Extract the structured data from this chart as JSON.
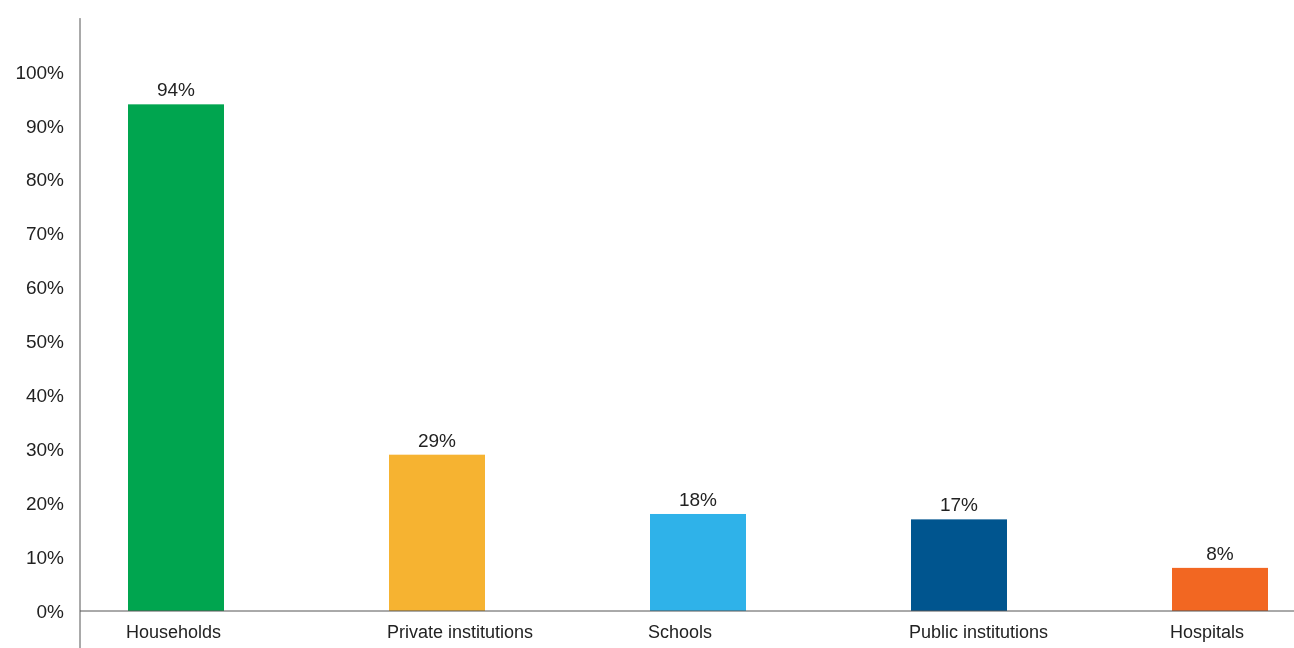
{
  "chart_data": {
    "type": "bar",
    "categories": [
      "Households",
      "Private institutions",
      "Schools",
      "Public institutions",
      "Hospitals"
    ],
    "values": [
      94,
      29,
      18,
      17,
      8
    ],
    "colors": [
      "#00a54f",
      "#f6b331",
      "#2fb2e9",
      "#00558f",
      "#f26722"
    ],
    "value_labels": [
      "94%",
      "29%",
      "18%",
      "17%",
      "8%"
    ],
    "ylim": [
      0,
      110
    ],
    "yticks": [
      {
        "value": 0,
        "label": "0%"
      },
      {
        "value": 10,
        "label": "10%"
      },
      {
        "value": 20,
        "label": "20%"
      },
      {
        "value": 30,
        "label": "30%"
      },
      {
        "value": 40,
        "label": "40%"
      },
      {
        "value": 50,
        "label": "50%"
      },
      {
        "value": 60,
        "label": "60%"
      },
      {
        "value": 70,
        "label": "70%"
      },
      {
        "value": 80,
        "label": "80%"
      },
      {
        "value": 90,
        "label": "90%"
      },
      {
        "value": 100,
        "label": "100%"
      }
    ],
    "grid": false
  }
}
